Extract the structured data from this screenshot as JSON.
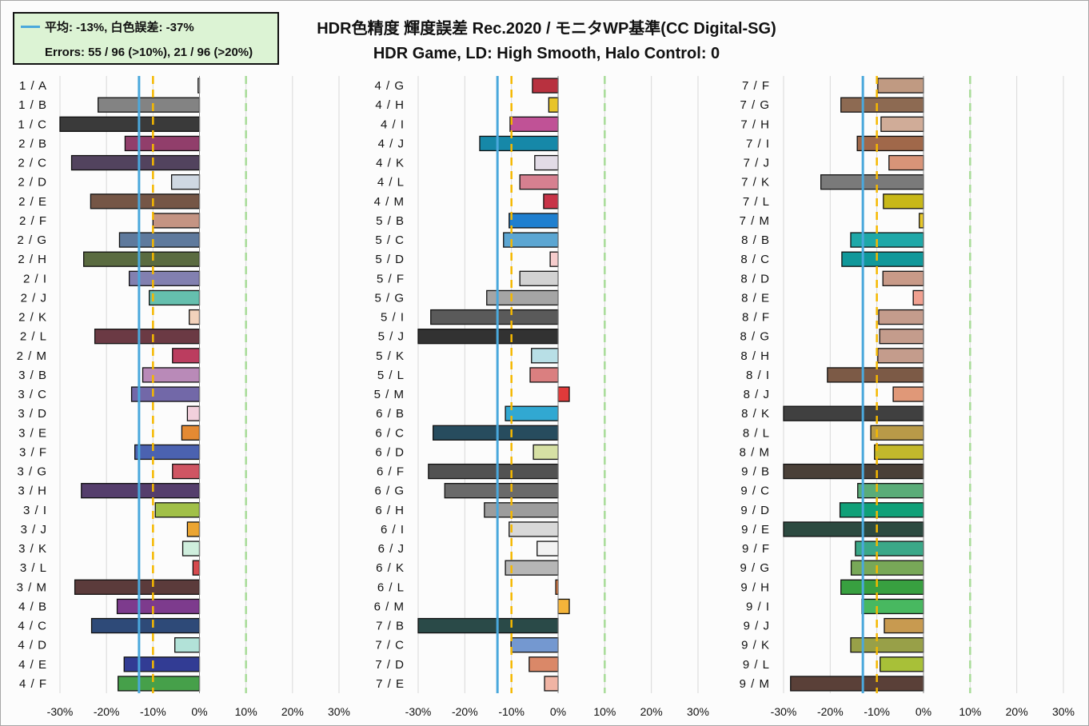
{
  "legend": {
    "line1": "平均: -13%, 白色誤差: -37%",
    "line2": "Errors: 55 / 96 (>10%),   21 / 96 (>20%)",
    "avg_color": "#4aa8dc"
  },
  "title": "HDR色精度 輝度誤差 Rec.2020 / モニタWP基準(CC Digital-SG)",
  "subtitle": "HDR Game, LD: High Smooth, Halo Control: 0",
  "chart_data": [
    {
      "type": "bar",
      "orientation": "horizontal",
      "xlim": [
        -30,
        30
      ],
      "xticks": [
        "-30%",
        "-20%",
        "-10%",
        "0%",
        "10%",
        "20%",
        "30%"
      ],
      "average": -13,
      "threshold_lines": [
        -10,
        10
      ],
      "categories": [
        "1 / A",
        "1 / B",
        "1 / C",
        "2 / B",
        "2 / C",
        "2 / D",
        "2 / E",
        "2 / F",
        "2 / G",
        "2 / H",
        "2 / I",
        "2 / J",
        "2 / K",
        "2 / L",
        "2 / M",
        "3 / B",
        "3 / C",
        "3 / D",
        "3 / E",
        "3 / F",
        "3 / G",
        "3 / H",
        "3 / I",
        "3 / J",
        "3 / K",
        "3 / L",
        "3 / M",
        "4 / B",
        "4 / C",
        "4 / D",
        "4 / E",
        "4 / F"
      ],
      "values": [
        -0.3,
        -21.8,
        -30,
        -16,
        -27.5,
        -6,
        -23.4,
        -10,
        -17.2,
        -24.9,
        -15.1,
        -10.8,
        -2.2,
        -22.5,
        -5.8,
        -12.2,
        -14.6,
        -2.6,
        -3.8,
        -13.9,
        -5.8,
        -25.4,
        -9.5,
        -2.6,
        -3.6,
        -1.4,
        -26.8,
        -17.7,
        -23.2,
        -5.3,
        -16.2,
        -17.5
      ],
      "colors": [
        "#ffffff",
        "#838383",
        "#3a3a3a",
        "#913e6b",
        "#52435e",
        "#cfd8e2",
        "#755646",
        "#c49483",
        "#5f7a9d",
        "#5a6b40",
        "#8280b0",
        "#65bfae",
        "#f2d2bb",
        "#6b3a44",
        "#bb3d5f",
        "#b98ab8",
        "#7268a8",
        "#f2d0dc",
        "#e48a33",
        "#4b62b0",
        "#cf5563",
        "#553e6c",
        "#a1c048",
        "#eba532",
        "#cfeedd",
        "#d64a4e",
        "#5b3b3b",
        "#7d3b8d",
        "#2e4a78",
        "#b2e2d8",
        "#323c94",
        "#46a04a"
      ]
    },
    {
      "type": "bar",
      "orientation": "horizontal",
      "xlim": [
        -30,
        30
      ],
      "xticks": [
        "-30%",
        "-20%",
        "-10%",
        "0%",
        "10%",
        "20%",
        "30%"
      ],
      "average": -13,
      "threshold_lines": [
        -10,
        10
      ],
      "categories": [
        "4 / G",
        "4 / H",
        "4 / I",
        "4 / J",
        "4 / K",
        "4 / L",
        "4 / M",
        "5 / B",
        "5 / C",
        "5 / D",
        "5 / F",
        "5 / G",
        "5 / I",
        "5 / J",
        "5 / K",
        "5 / L",
        "5 / M",
        "6 / B",
        "6 / C",
        "6 / D",
        "6 / F",
        "6 / G",
        "6 / H",
        "6 / I",
        "6 / J",
        "6 / K",
        "6 / L",
        "6 / M",
        "7 / B",
        "7 / C",
        "7 / D",
        "7 / E"
      ],
      "values": [
        -5.5,
        -2,
        -10.3,
        -16.8,
        -5,
        -8.2,
        -3.1,
        -10.5,
        -11.7,
        -1.7,
        -8.2,
        -15.3,
        -27.3,
        -30,
        -5.7,
        -6,
        2.4,
        -11.3,
        -26.8,
        -5.3,
        -27.8,
        -24.3,
        -15.8,
        -10.5,
        -4.5,
        -11.3,
        -0.5,
        2.4,
        -30,
        -10.1,
        -6.2,
        -2.9
      ],
      "colors": [
        "#b8313f",
        "#e8c42a",
        "#c05296",
        "#1688a8",
        "#e2dbe6",
        "#d68090",
        "#c83448",
        "#1f7fcf",
        "#5ca6d2",
        "#f6cccc",
        "#d2d2d2",
        "#a5a5a5",
        "#5a5a5a",
        "#323232",
        "#b8dfe6",
        "#da7f80",
        "#e03a3a",
        "#31a8d2",
        "#274c5e",
        "#d6e0a4",
        "#525252",
        "#6a6a6a",
        "#9c9c9c",
        "#d8d8d8",
        "#f2f2f2",
        "#b6b6b6",
        "#e87e40",
        "#f4b43a",
        "#2a4a48",
        "#7498d0",
        "#da8868",
        "#f0b4a4"
      ]
    },
    {
      "type": "bar",
      "orientation": "horizontal",
      "xlim": [
        -30,
        30
      ],
      "xticks": [
        "-30%",
        "-20%",
        "-10%",
        "0%",
        "10%",
        "20%",
        "30%"
      ],
      "average": -13,
      "threshold_lines": [
        -10,
        10
      ],
      "categories": [
        "7 / F",
        "7 / G",
        "7 / H",
        "7 / I",
        "7 / J",
        "7 / K",
        "7 / L",
        "7 / M",
        "8 / B",
        "8 / C",
        "8 / D",
        "8 / E",
        "8 / F",
        "8 / G",
        "8 / H",
        "8 / I",
        "8 / J",
        "8 / K",
        "8 / L",
        "8 / M",
        "9 / B",
        "9 / C",
        "9 / D",
        "9 / E",
        "9 / F",
        "9 / G",
        "9 / H",
        "9 / I",
        "9 / J",
        "9 / K",
        "9 / L",
        "9 / M"
      ],
      "values": [
        -9.8,
        -17.7,
        -9.1,
        -14.2,
        -7.4,
        -22,
        -8.6,
        -0.9,
        -15.6,
        -17.5,
        -8.7,
        -2.2,
        -9.6,
        -9.4,
        -9.8,
        -20.6,
        -6.5,
        -30,
        -11.3,
        -10.5,
        -30,
        -14.1,
        -17.9,
        -30,
        -14.6,
        -15.5,
        -17.7,
        -13.2,
        -8.4,
        -15.6,
        -9.3,
        -28.5
      ],
      "colors": [
        "#c09a82",
        "#8d6a52",
        "#d0ac98",
        "#a0684a",
        "#d89478",
        "#7a7a7a",
        "#c8b818",
        "#e8c82a",
        "#1fa8a8",
        "#10989a",
        "#c89a88",
        "#f0a090",
        "#c49c8c",
        "#c49c8c",
        "#c49c8c",
        "#7c5a46",
        "#e09878",
        "#404040",
        "#b89a48",
        "#c2b82c",
        "#4a4038",
        "#5aac78",
        "#10a078",
        "#2c4a40",
        "#3aa888",
        "#78a858",
        "#38a040",
        "#48b860",
        "#c89a50",
        "#98a048",
        "#a8c038",
        "#5a4038"
      ]
    }
  ]
}
